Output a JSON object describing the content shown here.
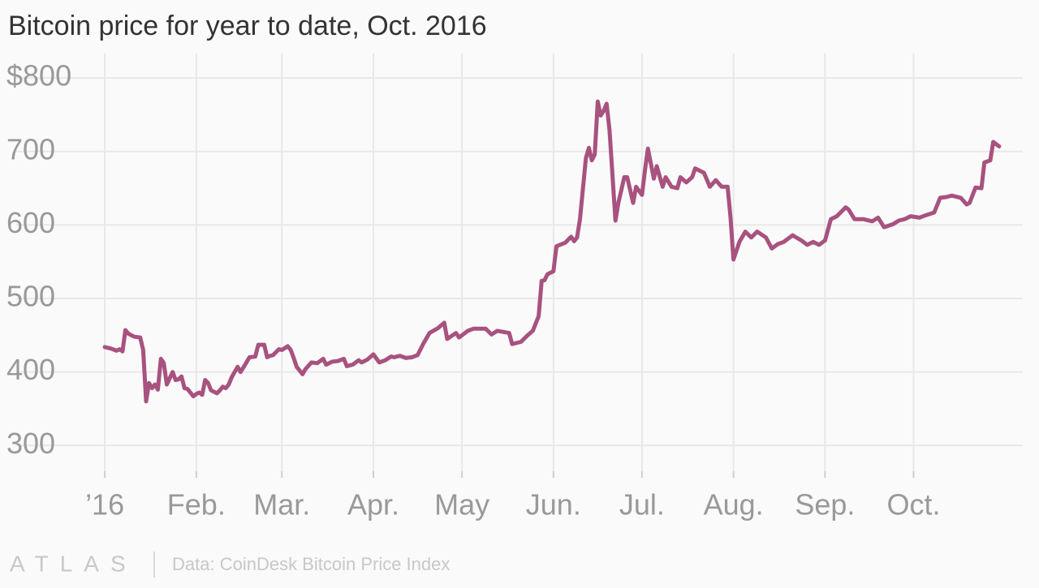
{
  "chart_data": {
    "type": "line",
    "title": "Bitcoin price for year to date, Oct. 2016",
    "source": "Data: CoinDesk Bitcoin Price Index",
    "brand": "ATLAS",
    "color": "#a8527f",
    "grid": true,
    "xlim": [
      -30,
      311
    ],
    "ylim": [
      265,
      830
    ],
    "yticks": [
      300,
      400,
      500,
      600,
      700,
      {
        "value": 800,
        "label": "$800"
      }
    ],
    "xticks": [
      {
        "value": 0,
        "label": "’16"
      },
      {
        "value": 31,
        "label": "Feb."
      },
      {
        "value": 60,
        "label": "Mar."
      },
      {
        "value": 91,
        "label": "Apr."
      },
      {
        "value": 121,
        "label": "May"
      },
      {
        "value": 152,
        "label": "Jun."
      },
      {
        "value": 182,
        "label": "Jul."
      },
      {
        "value": 213,
        "label": "Aug."
      },
      {
        "value": 244,
        "label": "Sep."
      },
      {
        "value": 274,
        "label": "Oct."
      }
    ],
    "x": [
      0,
      2,
      4,
      5,
      6,
      7,
      8,
      10,
      12,
      13,
      14,
      15,
      16,
      17,
      18,
      19,
      20,
      21,
      23,
      24,
      25,
      26,
      27,
      28,
      30,
      31,
      32,
      33,
      34,
      35,
      36,
      38,
      39,
      40,
      41,
      42,
      43,
      45,
      46,
      48,
      49,
      51,
      52,
      54,
      55,
      56,
      57,
      59,
      60,
      62,
      63,
      64,
      65,
      67,
      68,
      70,
      72,
      74,
      75,
      77,
      79,
      81,
      82,
      84,
      86,
      87,
      89,
      91,
      93,
      95,
      97,
      98,
      100,
      102,
      104,
      106,
      108,
      110,
      113,
      115,
      116,
      119,
      120,
      123,
      125,
      129,
      131,
      133,
      137,
      138,
      141,
      143,
      145,
      147,
      148,
      149,
      150,
      152,
      153,
      156,
      158,
      159,
      160,
      161,
      163,
      164,
      165,
      166,
      167,
      168,
      169,
      170,
      171,
      173,
      174,
      176,
      177,
      179,
      180,
      182,
      183,
      184,
      186,
      187,
      189,
      190,
      192,
      194,
      195,
      197,
      199,
      200,
      203,
      205,
      207,
      209,
      211,
      212,
      213,
      215,
      217,
      219,
      221,
      224,
      226,
      228,
      230,
      233,
      236,
      238,
      240,
      242,
      244,
      246,
      248,
      251,
      252,
      254,
      257,
      260,
      262,
      264,
      267,
      269,
      271,
      273,
      276,
      278,
      281,
      283,
      285,
      287,
      290,
      292,
      293,
      295,
      297,
      298,
      300,
      301,
      303
    ],
    "values": [
      434,
      432,
      429,
      431,
      428,
      457,
      452,
      448,
      447,
      430,
      360,
      385,
      378,
      383,
      376,
      418,
      412,
      383,
      400,
      389,
      390,
      394,
      378,
      377,
      367,
      370,
      372,
      369,
      389,
      385,
      375,
      371,
      375,
      380,
      378,
      383,
      393,
      407,
      400,
      413,
      420,
      421,
      437,
      437,
      420,
      422,
      423,
      431,
      430,
      435,
      430,
      419,
      407,
      397,
      404,
      413,
      412,
      418,
      410,
      414,
      415,
      418,
      408,
      410,
      416,
      413,
      417,
      424,
      413,
      416,
      421,
      420,
      422,
      419,
      420,
      423,
      439,
      453,
      460,
      467,
      445,
      453,
      447,
      456,
      459,
      459,
      451,
      456,
      453,
      438,
      441,
      449,
      456,
      476,
      524,
      525,
      533,
      537,
      571,
      576,
      584,
      578,
      583,
      608,
      691,
      705,
      688,
      696,
      768,
      749,
      755,
      765,
      729,
      606,
      630,
      665,
      665,
      630,
      652,
      641,
      674,
      704,
      663,
      680,
      652,
      665,
      652,
      650,
      665,
      658,
      665,
      677,
      671,
      652,
      661,
      652,
      652,
      610,
      553,
      577,
      591,
      583,
      591,
      583,
      568,
      574,
      577,
      586,
      579,
      573,
      577,
      573,
      579,
      608,
      612,
      624,
      621,
      608,
      608,
      605,
      610,
      597,
      601,
      606,
      608,
      612,
      610,
      613,
      617,
      637,
      638,
      640,
      637,
      628,
      630,
      651,
      650,
      685,
      688,
      713,
      707
    ]
  }
}
